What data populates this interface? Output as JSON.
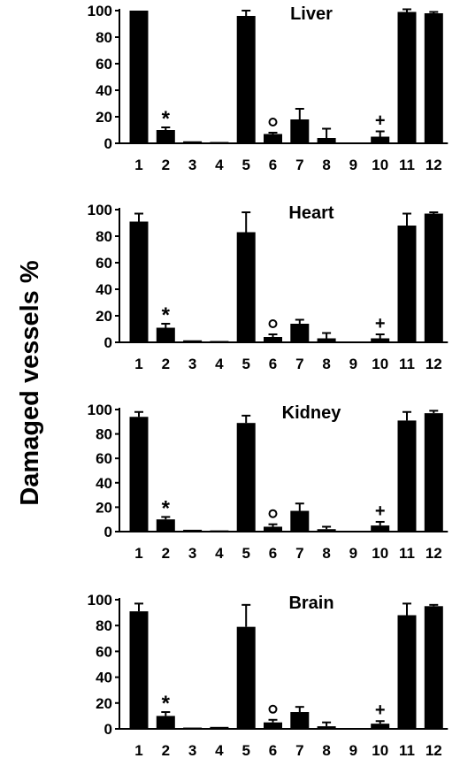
{
  "figure": {
    "ylabel": "Damaged vessels %"
  },
  "chart_data": [
    {
      "type": "bar",
      "title": "Liver",
      "categories": [
        "1",
        "2",
        "3",
        "4",
        "5",
        "6",
        "7",
        "8",
        "9",
        "10",
        "11",
        "12"
      ],
      "values": [
        100,
        10,
        1.5,
        1,
        96,
        7,
        18,
        4,
        0.5,
        5,
        99,
        98
      ],
      "errors": [
        0,
        2,
        0.5,
        0.5,
        4,
        1,
        8,
        7,
        0.3,
        4,
        2,
        1
      ],
      "ylim": [
        0,
        100
      ],
      "yticks": [
        "0",
        "20",
        "40",
        "60",
        "80",
        "100"
      ],
      "annotations": [
        {
          "category": "2",
          "symbol": "*"
        },
        {
          "category": "6",
          "symbol": "o"
        },
        {
          "category": "10",
          "symbol": "+"
        }
      ]
    },
    {
      "type": "bar",
      "title": "Heart",
      "categories": [
        "1",
        "2",
        "3",
        "4",
        "5",
        "6",
        "7",
        "8",
        "9",
        "10",
        "11",
        "12"
      ],
      "values": [
        91,
        11,
        1.5,
        1,
        83,
        4,
        14,
        3,
        0.5,
        3,
        88,
        97
      ],
      "errors": [
        6,
        3,
        0.5,
        0.5,
        15,
        2,
        3,
        4,
        0.3,
        3,
        9,
        1
      ],
      "ylim": [
        0,
        100
      ],
      "yticks": [
        "0",
        "20",
        "40",
        "60",
        "80",
        "100"
      ],
      "annotations": [
        {
          "category": "2",
          "symbol": "*"
        },
        {
          "category": "6",
          "symbol": "o"
        },
        {
          "category": "10",
          "symbol": "+"
        }
      ]
    },
    {
      "type": "bar",
      "title": "Kidney",
      "categories": [
        "1",
        "2",
        "3",
        "4",
        "5",
        "6",
        "7",
        "8",
        "9",
        "10",
        "11",
        "12"
      ],
      "values": [
        94,
        10,
        1.5,
        1,
        89,
        4,
        17,
        2,
        0.5,
        5,
        91,
        97
      ],
      "errors": [
        4,
        2,
        0.5,
        0.5,
        6,
        2,
        6,
        2,
        0.3,
        3,
        7,
        2
      ],
      "ylim": [
        0,
        100
      ],
      "yticks": [
        "0",
        "20",
        "40",
        "60",
        "80",
        "100"
      ],
      "annotations": [
        {
          "category": "2",
          "symbol": "*"
        },
        {
          "category": "6",
          "symbol": "o"
        },
        {
          "category": "10",
          "symbol": "+"
        }
      ]
    },
    {
      "type": "bar",
      "title": "Brain",
      "categories": [
        "1",
        "2",
        "3",
        "4",
        "5",
        "6",
        "7",
        "8",
        "9",
        "10",
        "11",
        "12"
      ],
      "values": [
        91,
        10,
        1,
        1.5,
        79,
        5,
        13,
        2,
        0.5,
        4,
        88,
        95
      ],
      "errors": [
        6,
        3,
        0.5,
        0.5,
        17,
        2,
        4,
        3,
        0.3,
        2,
        9,
        1
      ],
      "ylim": [
        0,
        100
      ],
      "yticks": [
        "0",
        "20",
        "40",
        "60",
        "80",
        "100"
      ],
      "annotations": [
        {
          "category": "2",
          "symbol": "*"
        },
        {
          "category": "6",
          "symbol": "o"
        },
        {
          "category": "10",
          "symbol": "+"
        }
      ]
    }
  ]
}
